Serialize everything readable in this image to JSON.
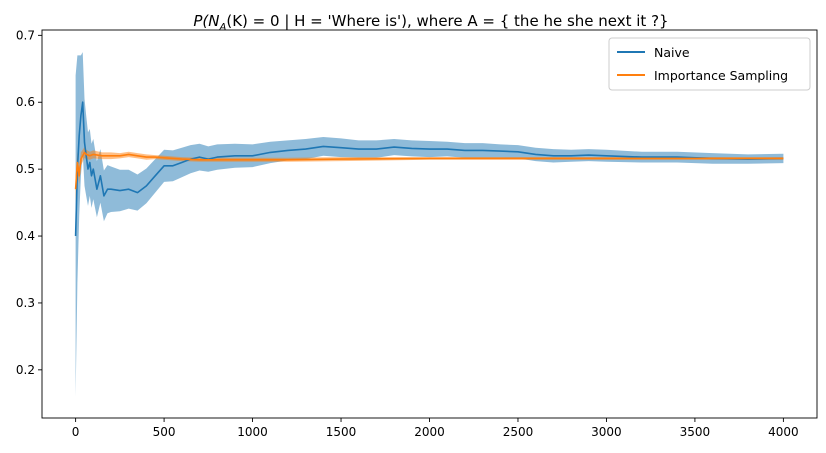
{
  "chart_data": {
    "type": "line",
    "title": "P(N_A(K) = 0 | H = 'Where is'), where A = { the he she next it ?}",
    "title_parts": {
      "a": "P(N",
      "b": "A",
      "c": "(K) = 0 | H = 'Where is'), where A = { the he she next it ?}"
    },
    "xlabel": "",
    "ylabel": "",
    "xlim": [
      -190,
      4190
    ],
    "ylim": [
      0.128,
      0.708
    ],
    "xticks": [
      0,
      500,
      1000,
      1500,
      2000,
      2500,
      3000,
      3500,
      4000
    ],
    "yticks": [
      0.2,
      0.3,
      0.4,
      0.5,
      0.6,
      0.7
    ],
    "grid": false,
    "legend_position": "top-right",
    "series": [
      {
        "name": "Naive",
        "color": "#1f77b4",
        "band_color": "#1f77b4",
        "band_opacity": 0.5,
        "x": [
          0,
          10,
          20,
          30,
          40,
          50,
          60,
          70,
          80,
          90,
          100,
          120,
          140,
          160,
          180,
          200,
          250,
          300,
          350,
          400,
          450,
          500,
          550,
          600,
          650,
          700,
          750,
          800,
          900,
          1000,
          1100,
          1200,
          1300,
          1400,
          1500,
          1600,
          1700,
          1800,
          1900,
          2000,
          2100,
          2200,
          2300,
          2400,
          2500,
          2600,
          2700,
          2800,
          2900,
          3000,
          3200,
          3400,
          3600,
          3800,
          4000
        ],
        "y": [
          0.4,
          0.5,
          0.55,
          0.58,
          0.6,
          0.54,
          0.52,
          0.5,
          0.51,
          0.49,
          0.5,
          0.47,
          0.49,
          0.46,
          0.47,
          0.47,
          0.468,
          0.47,
          0.465,
          0.475,
          0.49,
          0.505,
          0.505,
          0.51,
          0.515,
          0.518,
          0.515,
          0.518,
          0.52,
          0.52,
          0.525,
          0.528,
          0.53,
          0.534,
          0.532,
          0.53,
          0.53,
          0.533,
          0.531,
          0.53,
          0.53,
          0.528,
          0.528,
          0.527,
          0.526,
          0.522,
          0.52,
          0.52,
          0.521,
          0.52,
          0.518,
          0.518,
          0.516,
          0.515,
          0.516
        ],
        "band_halfwidth": [
          0.24,
          0.17,
          0.12,
          0.09,
          0.075,
          0.065,
          0.06,
          0.055,
          0.05,
          0.048,
          0.045,
          0.042,
          0.04,
          0.038,
          0.036,
          0.034,
          0.031,
          0.029,
          0.027,
          0.026,
          0.025,
          0.024,
          0.023,
          0.022,
          0.021,
          0.02,
          0.019,
          0.019,
          0.018,
          0.017,
          0.016,
          0.015,
          0.015,
          0.014,
          0.014,
          0.013,
          0.013,
          0.012,
          0.012,
          0.012,
          0.011,
          0.011,
          0.011,
          0.01,
          0.01,
          0.01,
          0.01,
          0.009,
          0.009,
          0.009,
          0.008,
          0.008,
          0.008,
          0.007,
          0.007
        ]
      },
      {
        "name": "Importance Sampling",
        "color": "#ff7f0e",
        "band_color": "#ff7f0e",
        "band_opacity": 0.5,
        "x": [
          0,
          10,
          20,
          30,
          40,
          50,
          60,
          80,
          100,
          150,
          200,
          250,
          300,
          350,
          400,
          450,
          500,
          600,
          700,
          800,
          1000,
          1200,
          1500,
          2000,
          2500,
          3000,
          3500,
          4000
        ],
        "y": [
          0.47,
          0.51,
          0.49,
          0.515,
          0.52,
          0.525,
          0.522,
          0.52,
          0.522,
          0.52,
          0.52,
          0.52,
          0.522,
          0.52,
          0.518,
          0.518,
          0.517,
          0.515,
          0.514,
          0.514,
          0.514,
          0.514,
          0.515,
          0.516,
          0.516,
          0.516,
          0.516,
          0.516
        ],
        "band_halfwidth": [
          0.02,
          0.015,
          0.012,
          0.01,
          0.009,
          0.008,
          0.007,
          0.006,
          0.006,
          0.005,
          0.005,
          0.004,
          0.004,
          0.004,
          0.004,
          0.003,
          0.003,
          0.003,
          0.003,
          0.003,
          0.003,
          0.003,
          0.003,
          0.002,
          0.002,
          0.002,
          0.002,
          0.002
        ]
      }
    ]
  }
}
